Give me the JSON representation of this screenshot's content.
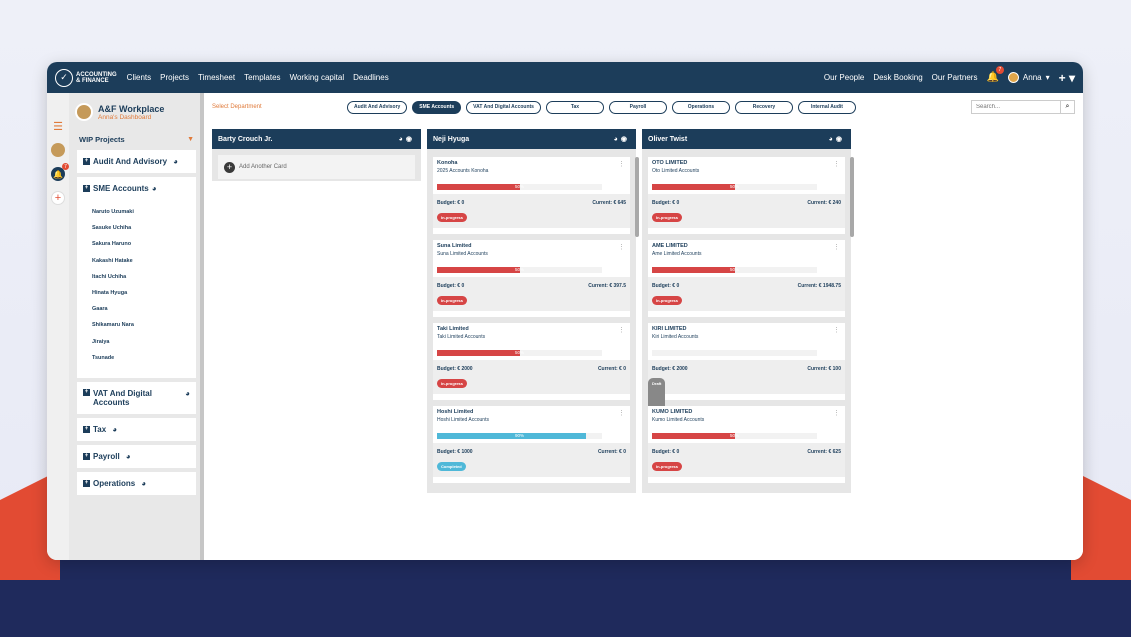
{
  "nav": {
    "logo_line1": "ACCOUNTING",
    "logo_line2": "& FINANCE",
    "links": [
      "Clients",
      "Projects",
      "Timesheet",
      "Templates",
      "Working capital",
      "Deadlines"
    ],
    "right_links": [
      "Our People",
      "Desk Booking",
      "Our Partners"
    ],
    "bell_count": "7",
    "user_name": "Anna"
  },
  "iconbar": {
    "notify_count": "7"
  },
  "sidebar": {
    "workspace_title": "A&F Workplace",
    "workspace_sub": "Anna's Dashboard",
    "wip_label": "WIP Projects",
    "departments": [
      "Audit And Advisory",
      "SME Accounts",
      "VAT And Digital",
      "Accounts",
      "Tax",
      "Payroll",
      "Operations"
    ],
    "people": [
      "Naruto Uzumaki",
      "Sasuke Uchiha",
      "Sakura Haruno",
      "Kakashi Hatake",
      "Itachi Uchiha",
      "Hinata Hyuga",
      "Gaara",
      "Shikamaru Nara",
      "Jiraiya",
      "Tsunade"
    ]
  },
  "toolbar": {
    "select_department": "Select Department",
    "pills": [
      "Audit And Advisory",
      "SME Accounts",
      "VAT And Digital Accounts",
      "Tax",
      "Payroll",
      "Operations",
      "Recovery",
      "Internal Audit"
    ],
    "active_pill": "SME Accounts",
    "search_placeholder": "Search..."
  },
  "columns": [
    {
      "name": "Barty Crouch Jr.",
      "add_card": "Add Another Card",
      "cards": []
    },
    {
      "name": "Neji Hyuga",
      "cards": [
        {
          "name": "Konoha",
          "sub": "2025 Accounts Konoha",
          "pct": "50%",
          "progress": 0.5,
          "budget": "Budget: € 0",
          "current": "Current: € 645",
          "status": "In-progress",
          "status_color": "red"
        },
        {
          "name": "Suna Limited",
          "sub": "Suna Limited Accounts",
          "pct": "50%",
          "progress": 0.5,
          "budget": "Budget: € 0",
          "current": "Current: € 397.5",
          "status": "In-progress",
          "status_color": "red"
        },
        {
          "name": "Taki Limited",
          "sub": "Taki Limited Accounts",
          "pct": "50%",
          "progress": 0.5,
          "budget": "Budget: € 2000",
          "current": "Current: € 0",
          "status": "In-progress",
          "status_color": "red"
        },
        {
          "name": "Hoshi Limited",
          "sub": "Hoshi Limited Accounts",
          "pct": "90%",
          "progress": 0.9,
          "budget": "Budget: € 1000",
          "current": "Current: € 0",
          "status": "Completed",
          "status_color": "blue"
        }
      ]
    },
    {
      "name": "Oliver Twist",
      "cards": [
        {
          "name": "OTO LIMITED",
          "sub": "Oto Limited Accounts",
          "pct": "50%",
          "progress": 0.5,
          "budget": "Budget: € 0",
          "current": "Current: € 240",
          "status": "In-progress",
          "status_color": "red"
        },
        {
          "name": "AME LIMITED",
          "sub": "Ame Limited Accounts",
          "pct": "50%",
          "progress": 0.5,
          "budget": "Budget: € 0",
          "current": "Current: € 1948.75",
          "status": "In-progress",
          "status_color": "red"
        },
        {
          "name": "KIRI LIMITED",
          "sub": "Kiri Limited Accounts",
          "pct": "",
          "progress": 0,
          "budget": "Budget: € 2000",
          "current": "Current: € 100",
          "status": "Draft",
          "status_color": "gray"
        },
        {
          "name": "KUMO LIMITED",
          "sub": "Kumo Limited Accounts",
          "pct": "50%",
          "progress": 0.5,
          "budget": "Budget: € 0",
          "current": "Current: € 625",
          "status": "In-progress",
          "status_color": "red"
        }
      ]
    }
  ]
}
